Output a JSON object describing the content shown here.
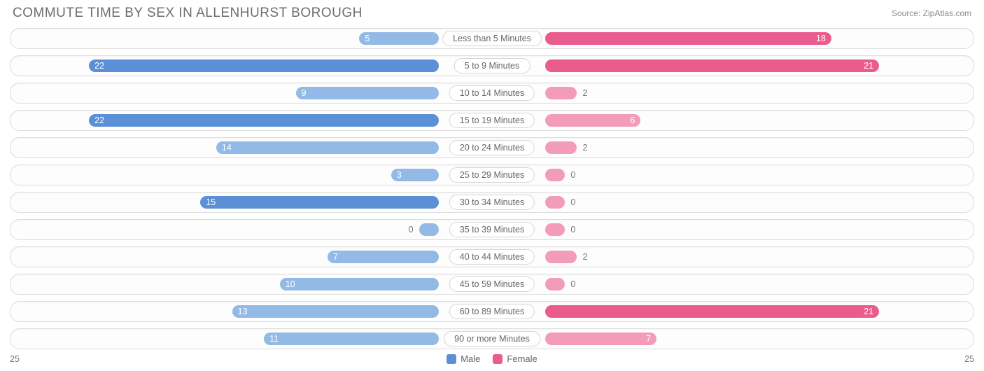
{
  "title": "Commute Time By Sex in Allenhurst Borough",
  "source": "Source: ZipAtlas.com",
  "max_value": 25,
  "colors": {
    "male_full": "#5b8fd6",
    "male_light": "#93b9e6",
    "female_full": "#ea5b8e",
    "female_light": "#f39cb9",
    "row_border": "#dcdcdc",
    "text_muted": "#777777",
    "bg": "#ffffff"
  },
  "legend": {
    "male": "Male",
    "female": "Female"
  },
  "axis": {
    "left": "25",
    "right": "25"
  },
  "threshold_for_inside_label": 3,
  "threshold_for_full_color": 15,
  "rows": [
    {
      "label": "Less than 5 Minutes",
      "male": 5,
      "female": 18
    },
    {
      "label": "5 to 9 Minutes",
      "male": 22,
      "female": 21
    },
    {
      "label": "10 to 14 Minutes",
      "male": 9,
      "female": 2
    },
    {
      "label": "15 to 19 Minutes",
      "male": 22,
      "female": 6
    },
    {
      "label": "20 to 24 Minutes",
      "male": 14,
      "female": 2
    },
    {
      "label": "25 to 29 Minutes",
      "male": 3,
      "female": 0
    },
    {
      "label": "30 to 34 Minutes",
      "male": 15,
      "female": 0
    },
    {
      "label": "35 to 39 Minutes",
      "male": 0,
      "female": 0
    },
    {
      "label": "40 to 44 Minutes",
      "male": 7,
      "female": 2
    },
    {
      "label": "45 to 59 Minutes",
      "male": 10,
      "female": 0
    },
    {
      "label": "60 to 89 Minutes",
      "male": 13,
      "female": 21
    },
    {
      "label": "90 or more Minutes",
      "male": 11,
      "female": 7
    }
  ]
}
